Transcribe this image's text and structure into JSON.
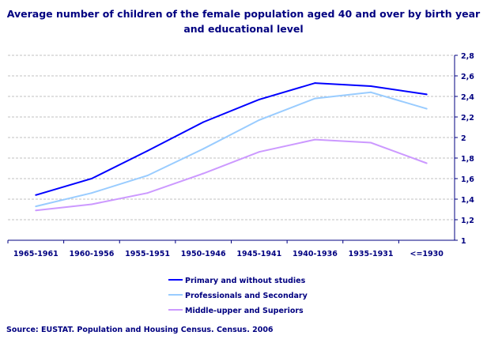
{
  "chart_data": {
    "type": "line",
    "title": "Average number of children of the female population aged 40 and over by birth year and educational level",
    "categories": [
      "1965-1961",
      "1960-1956",
      "1955-1951",
      "1950-1946",
      "1945-1941",
      "1940-1936",
      "1935-1931",
      "<=1930"
    ],
    "ylim": [
      1,
      2.8
    ],
    "yticks": [
      "1",
      "1,2",
      "1,4",
      "1,6",
      "1,8",
      "2",
      "2,2",
      "2,4",
      "2,6",
      "2,8"
    ],
    "grid": true,
    "y_axis_side": "right",
    "legend_placement": "bottom",
    "series": [
      {
        "name": "Primary and without studies",
        "color": "#0000ff",
        "values": [
          1.44,
          1.6,
          1.87,
          2.15,
          2.37,
          2.53,
          2.5,
          2.42
        ]
      },
      {
        "name": "Professionals and Secondary",
        "color": "#99ccff",
        "values": [
          1.33,
          1.46,
          1.63,
          1.89,
          2.17,
          2.38,
          2.44,
          2.28
        ]
      },
      {
        "name": "Middle-upper and Superiors",
        "color": "#cc99ff",
        "values": [
          1.29,
          1.35,
          1.46,
          1.65,
          1.86,
          1.98,
          1.95,
          1.75
        ]
      }
    ]
  },
  "source": "Source: EUSTAT. Population and Housing Census. Census. 2006"
}
